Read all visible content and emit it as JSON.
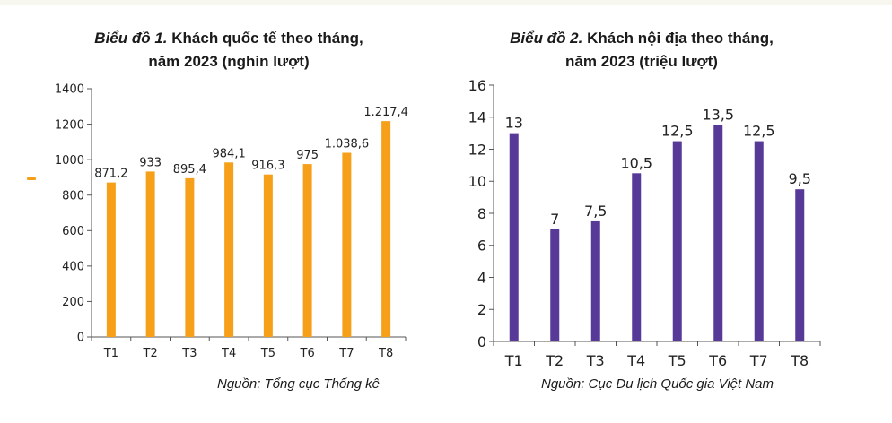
{
  "colors": {
    "bar_chart1": "#f6a01a",
    "bar_chart2": "#573a98",
    "axis": "#555555",
    "top_strip": "#f7f6ef"
  },
  "chart_data": [
    {
      "type": "bar",
      "title_lead": "Biểu đồ 1.",
      "title_rest": " Khách quốc tế theo tháng,",
      "title_line2": "năm 2023 (nghìn lượt)",
      "categories": [
        "T1",
        "T2",
        "T3",
        "T4",
        "T5",
        "T6",
        "T7",
        "T8"
      ],
      "values": [
        871.2,
        933,
        895.4,
        984.1,
        916.3,
        975,
        1038.6,
        1217.4
      ],
      "value_labels": [
        "871,2",
        "933",
        "895,4",
        "984,1",
        "916,3",
        "975",
        "1.038,6",
        "1.217,4"
      ],
      "yticks": [
        0,
        200,
        400,
        600,
        800,
        1000,
        1200,
        1400
      ],
      "ylim": [
        0,
        1400
      ],
      "xlabel": "",
      "ylabel": "",
      "grid": false,
      "source": "Nguồn: Tổng cục Thống kê"
    },
    {
      "type": "bar",
      "title_lead": "Biểu đồ 2.",
      "title_rest": " Khách nội địa theo tháng,",
      "title_line2": "năm 2023 (triệu lượt)",
      "categories": [
        "T1",
        "T2",
        "T3",
        "T4",
        "T5",
        "T6",
        "T7",
        "T8"
      ],
      "values": [
        13,
        7,
        7.5,
        10.5,
        12.5,
        13.5,
        12.5,
        9.5
      ],
      "value_labels": [
        "13",
        "7",
        "7,5",
        "10,5",
        "12,5",
        "13,5",
        "12,5",
        "9,5"
      ],
      "yticks": [
        0,
        2,
        4,
        6,
        8,
        10,
        12,
        14,
        16
      ],
      "ylim": [
        0,
        16
      ],
      "xlabel": "",
      "ylabel": "",
      "grid": false,
      "source": "Nguồn: Cục Du lịch Quốc gia Việt Nam"
    }
  ]
}
